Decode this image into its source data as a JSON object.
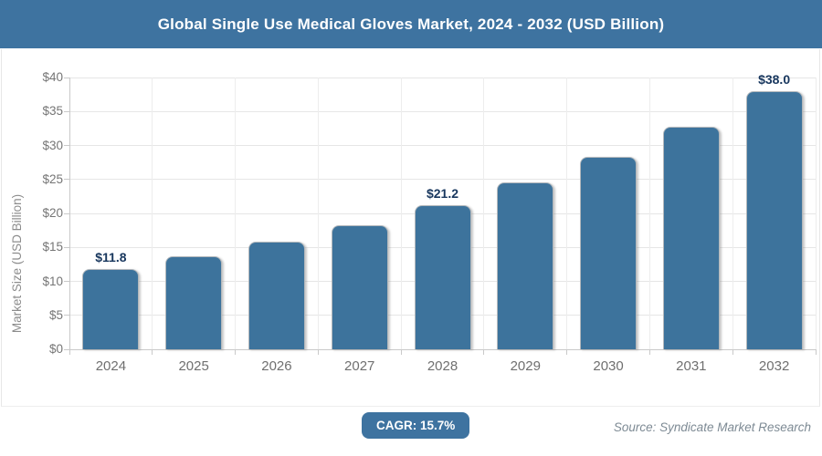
{
  "header": {
    "title": "Global Single Use Medical Gloves Market, 2024 - 2032 (USD Billion)"
  },
  "chart_data": {
    "type": "bar",
    "title": "Global Single Use Medical Gloves Market, 2024 - 2032 (USD Billion)",
    "categories": [
      "2024",
      "2025",
      "2026",
      "2027",
      "2028",
      "2029",
      "2030",
      "2031",
      "2032"
    ],
    "values": [
      11.8,
      13.7,
      15.8,
      18.3,
      21.2,
      24.5,
      28.3,
      32.8,
      38.0
    ],
    "point_labels": [
      "$11.8",
      "",
      "",
      "",
      "$21.2",
      "",
      "",
      "",
      "$38.0"
    ],
    "xlabel": "",
    "ylabel": "Market Size (USD Billion)",
    "ylim": [
      0,
      40
    ],
    "ytick_step": 5,
    "ytick_labels": [
      "$0",
      "$5",
      "$10",
      "$15",
      "$20",
      "$25",
      "$30",
      "$35",
      "$40"
    ],
    "grid": true,
    "legend": "none"
  },
  "footer": {
    "cagr_label": "CAGR: 15.7%",
    "source": "Source: Syndicate Market Research"
  },
  "colors": {
    "header_bg": "#3e73a0",
    "bar_fill": "#3d739c",
    "bar_border": "#b3b8bc",
    "badge_bg": "#3e73a0",
    "data_label_text": "#17365d",
    "axis_line": "#c9c9c9",
    "grid_horizontal": "#e6e6e6",
    "grid_vertical": "#ededed",
    "tick_text": "#757575",
    "axis_title_text": "#8c8c8c",
    "source_text": "#7d8a94"
  }
}
